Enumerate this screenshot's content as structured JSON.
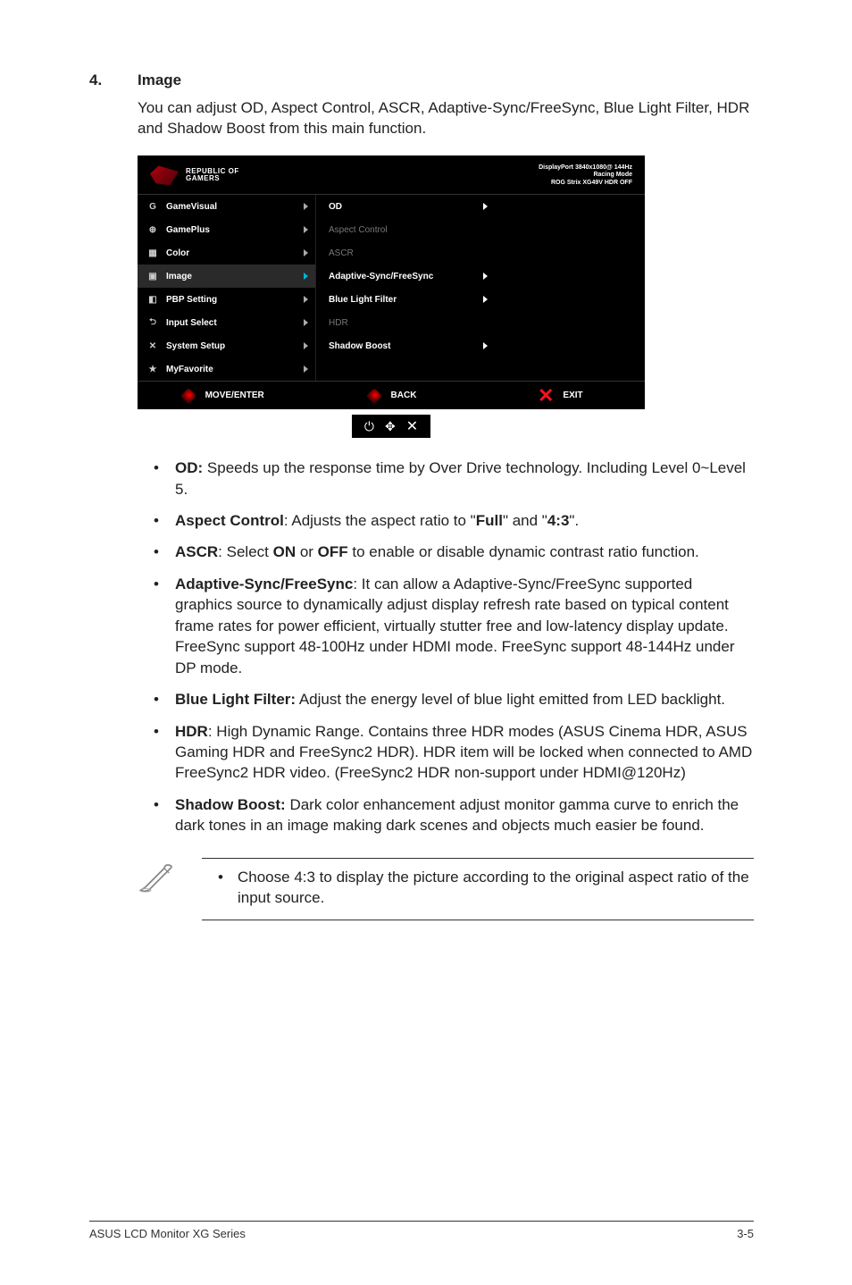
{
  "section": {
    "number": "4.",
    "title": "Image"
  },
  "intro": "You can adjust OD, Aspect Control, ASCR, Adaptive-Sync/FreeSync, Blue Light Filter, HDR and Shadow Boost from this main function.",
  "osd": {
    "brand_top": "REPUBLIC OF",
    "brand_bottom": "GAMERS",
    "status_line1": "DisplayPort 3840x1080@ 144Hz",
    "status_line2": "Racing Mode",
    "status_line3": "ROG Strix XG49V HDR OFF",
    "left_items": [
      {
        "icon": "G",
        "label": "GameVisual",
        "selected": false
      },
      {
        "icon": "⊕",
        "label": "GamePlus",
        "selected": false
      },
      {
        "icon": "▦",
        "label": "Color",
        "selected": false
      },
      {
        "icon": "▣",
        "label": "Image",
        "selected": true
      },
      {
        "icon": "◧",
        "label": "PBP Setting",
        "selected": false
      },
      {
        "icon": "⮌",
        "label": "Input Select",
        "selected": false
      },
      {
        "icon": "✕",
        "label": "System Setup",
        "selected": false
      },
      {
        "icon": "★",
        "label": "MyFavorite",
        "selected": false
      }
    ],
    "sub_items": [
      {
        "label": "OD",
        "enabled": true
      },
      {
        "label": "Aspect Control",
        "enabled": false
      },
      {
        "label": "ASCR",
        "enabled": false
      },
      {
        "label": "Adaptive-Sync/FreeSync",
        "enabled": true
      },
      {
        "label": "Blue Light Filter",
        "enabled": true
      },
      {
        "label": "HDR",
        "enabled": false
      },
      {
        "label": "Shadow Boost",
        "enabled": true
      }
    ],
    "footer_move": "MOVE/ENTER",
    "footer_back": "BACK",
    "footer_exit": "EXIT",
    "nav_power": "⏻",
    "nav_joy": "✥",
    "nav_x": "✕"
  },
  "bullets": [
    {
      "label": "OD:",
      "text": " Speeds up the response time by Over Drive technology. Including Level 0~Level 5."
    },
    {
      "label": "Aspect Control",
      "text": ": Adjusts the aspect ratio to \"",
      "tail": "\" and \"",
      "v1": "Full",
      "v2": "4:3",
      "end": "\"."
    },
    {
      "label": "ASCR",
      "text": ": Select ",
      "on": "ON",
      "mid": " or ",
      "off": "OFF",
      "end": " to enable or disable dynamic contrast ratio function."
    },
    {
      "label": "Adaptive-Sync/FreeSync",
      "text": ": It can allow a Adaptive-Sync/FreeSync supported graphics source to dynamically adjust display refresh rate based on typical content frame rates for power efficient, virtually stutter free and low-latency display update. FreeSync support 48-100Hz under HDMI mode. FreeSync support 48-144Hz under DP mode."
    },
    {
      "label": "Blue Light Filter:",
      "text": " Adjust the energy level of blue light emitted from LED backlight."
    },
    {
      "label": "HDR",
      "text": ": High Dynamic Range. Contains three HDR modes (ASUS Cinema HDR, ASUS Gaming HDR and FreeSync2 HDR). HDR item will be locked when connected to AMD FreeSync2 HDR video. (FreeSync2 HDR non-support under HDMI@120Hz)"
    },
    {
      "label": "Shadow Boost:",
      "text": " Dark color enhancement adjust monitor gamma curve to enrich the dark tones in an image making dark scenes and objects much easier be found."
    }
  ],
  "note": "Choose 4:3 to display the picture according to the original aspect ratio of the input source.",
  "footer": {
    "left": "ASUS LCD Monitor XG Series",
    "right": "3-5"
  }
}
